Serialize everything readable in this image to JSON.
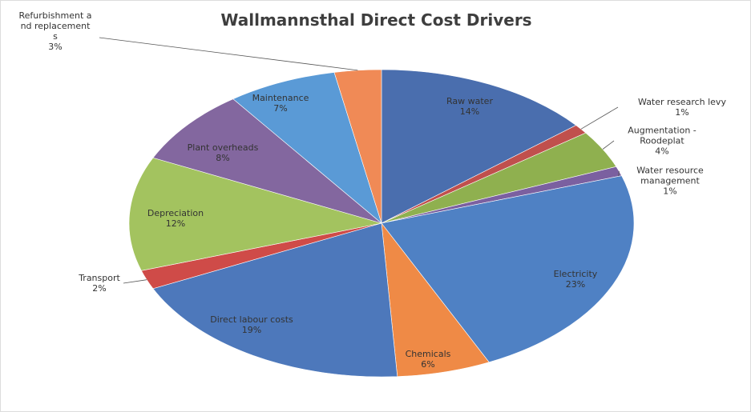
{
  "chart_data": {
    "type": "pie",
    "title": "Wallmannsthal Direct Cost Drivers",
    "categories": [
      "Raw water",
      "Water research levy",
      "Augmentation - Roodeplat",
      "Water resource management",
      "Electricity",
      "Chemicals",
      "Direct labour costs",
      "Transport",
      "Depreciation",
      "Plant overheads",
      "Maintenance",
      "Refurbishment and replacements"
    ],
    "values": [
      14,
      1,
      4,
      1,
      23,
      6,
      19,
      2,
      12,
      8,
      7,
      3
    ],
    "value_labels": [
      "14%",
      "1%",
      "4%",
      "1%",
      "23%",
      "6%",
      "19%",
      "2%",
      "12%",
      "8%",
      "7%",
      "3%"
    ],
    "colors": [
      "#4a6eae",
      "#c0504d",
      "#8fb04f",
      "#7b60a0",
      "#4f81c4",
      "#ef8a46",
      "#4d78bb",
      "#cf4b48",
      "#a3c35f",
      "#83679f",
      "#5a9ad6",
      "#f08a56"
    ]
  }
}
